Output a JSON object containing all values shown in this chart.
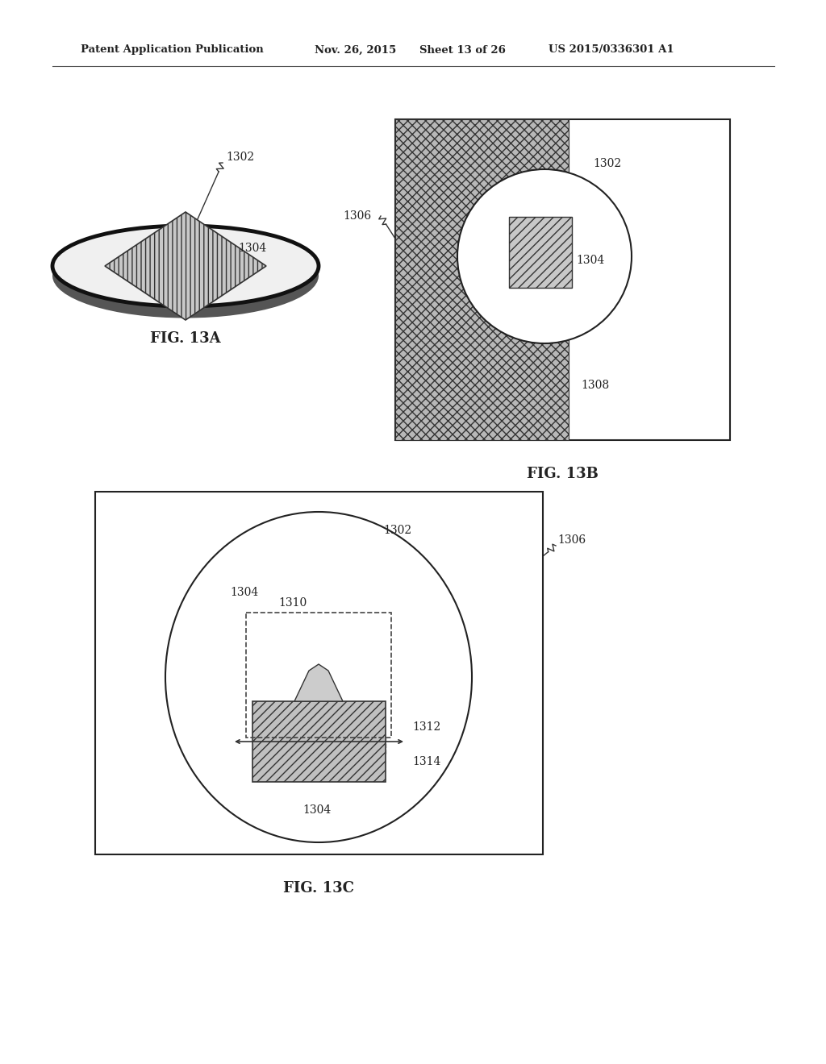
{
  "bg_color": "#ffffff",
  "header_text1": "Patent Application Publication",
  "header_text2": "Nov. 26, 2015",
  "header_text3": "Sheet 13 of 26",
  "header_text4": "US 2015/0336301 A1",
  "fig_label_a": "FIG. 13A",
  "fig_label_b": "FIG. 13B",
  "fig_label_c": "FIG. 13C",
  "label_color": "#222222",
  "edge_color": "#2a2a2a",
  "hatch_light": "///",
  "hatch_dark": "xxx",
  "face_hatch_light": "#d0d0d0",
  "face_hatch_dark": "#a0a0a0"
}
